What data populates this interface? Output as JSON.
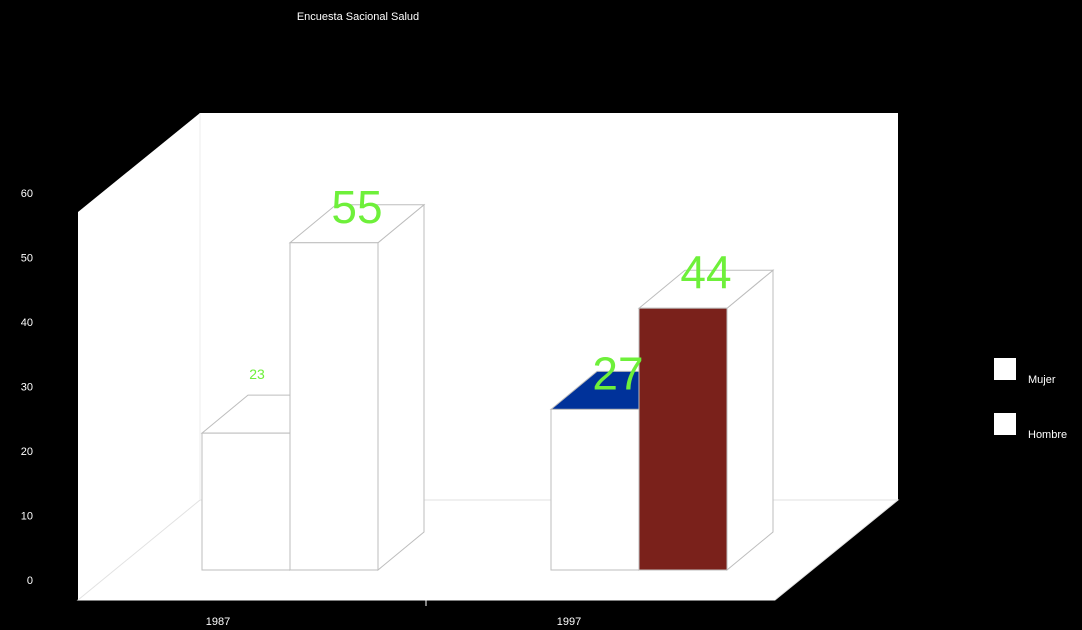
{
  "chart_data": {
    "type": "bar",
    "title": "Encuesta Sacional Salud",
    "xlabel": "",
    "ylabel": "",
    "categories": [
      "1987",
      "1997"
    ],
    "series": [
      {
        "name": "Mujer",
        "values": [
          23,
          27
        ]
      },
      {
        "name": "Hombre",
        "values": [
          55,
          44
        ]
      }
    ],
    "data_labels": [
      [
        "23",
        "55"
      ],
      [
        "27",
        "44"
      ]
    ],
    "ylim": [
      0,
      60
    ],
    "yticks": [
      "0",
      "10",
      "20",
      "30",
      "40",
      "50",
      "60"
    ],
    "grid": false,
    "legend_position": "right",
    "colors": {
      "background": "#000000",
      "plot_wall": "#ffffff",
      "bar_face": "#ffffff",
      "highlight_front": "#7a211b",
      "highlight_top": "#00329a",
      "label_color": "#6ef03a",
      "axis_text": "#ffffff"
    }
  }
}
